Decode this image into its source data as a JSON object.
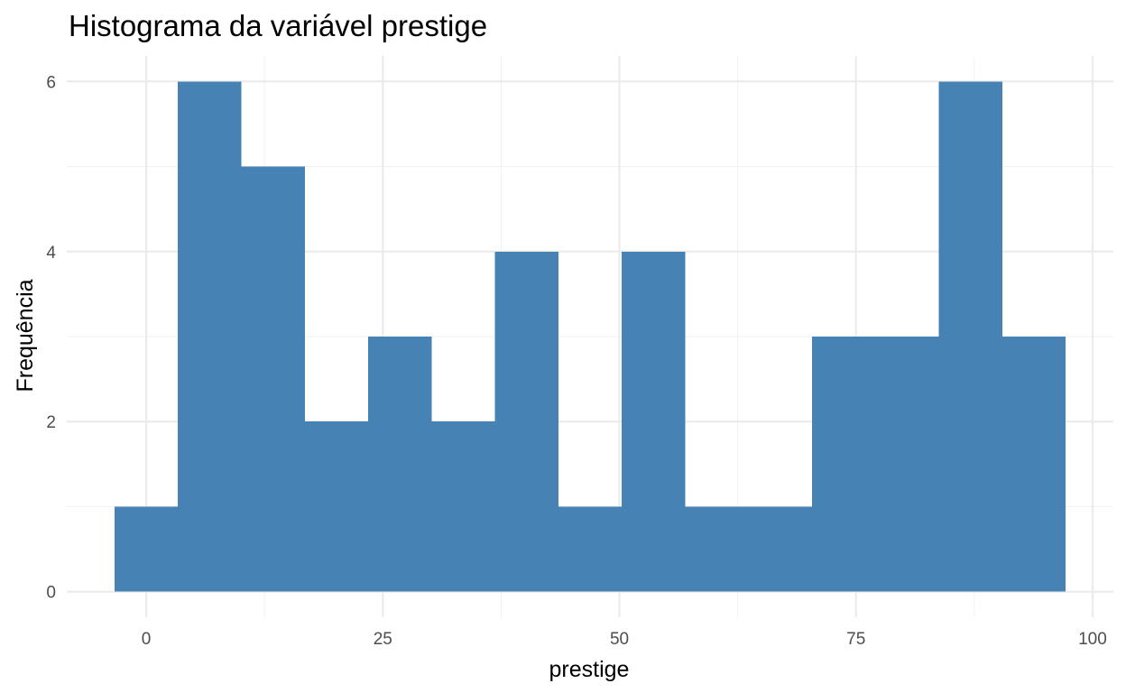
{
  "chart_data": {
    "type": "bar",
    "title": "Histograma da variável prestige",
    "xlabel": "prestige",
    "ylabel": "Frequência",
    "bin_width": 6.7,
    "bins": [
      {
        "start": -3.35,
        "end": 3.35,
        "count": 1
      },
      {
        "start": 3.35,
        "end": 10.05,
        "count": 6
      },
      {
        "start": 10.05,
        "end": 16.75,
        "count": 5
      },
      {
        "start": 16.75,
        "end": 23.45,
        "count": 2
      },
      {
        "start": 23.45,
        "end": 30.15,
        "count": 3
      },
      {
        "start": 30.15,
        "end": 36.85,
        "count": 2
      },
      {
        "start": 36.85,
        "end": 43.55,
        "count": 4
      },
      {
        "start": 43.55,
        "end": 50.25,
        "count": 1
      },
      {
        "start": 50.25,
        "end": 56.95,
        "count": 4
      },
      {
        "start": 56.95,
        "end": 63.65,
        "count": 1
      },
      {
        "start": 63.65,
        "end": 70.35,
        "count": 1
      },
      {
        "start": 70.35,
        "end": 77.05,
        "count": 3
      },
      {
        "start": 77.05,
        "end": 83.75,
        "count": 3
      },
      {
        "start": 83.75,
        "end": 90.45,
        "count": 6
      },
      {
        "start": 90.45,
        "end": 97.15,
        "count": 3
      }
    ],
    "xlim": [
      -8.4,
      102.2
    ],
    "ylim": [
      -0.3,
      6.3
    ],
    "x_ticks": [
      0,
      25,
      50,
      75,
      100
    ],
    "x_tick_labels": [
      "0",
      "25",
      "50",
      "75",
      "100"
    ],
    "y_ticks": [
      0,
      2,
      4,
      6
    ],
    "y_tick_labels": [
      "0",
      "2",
      "4",
      "6"
    ],
    "grid": true,
    "bar_color": "#4682B4"
  }
}
